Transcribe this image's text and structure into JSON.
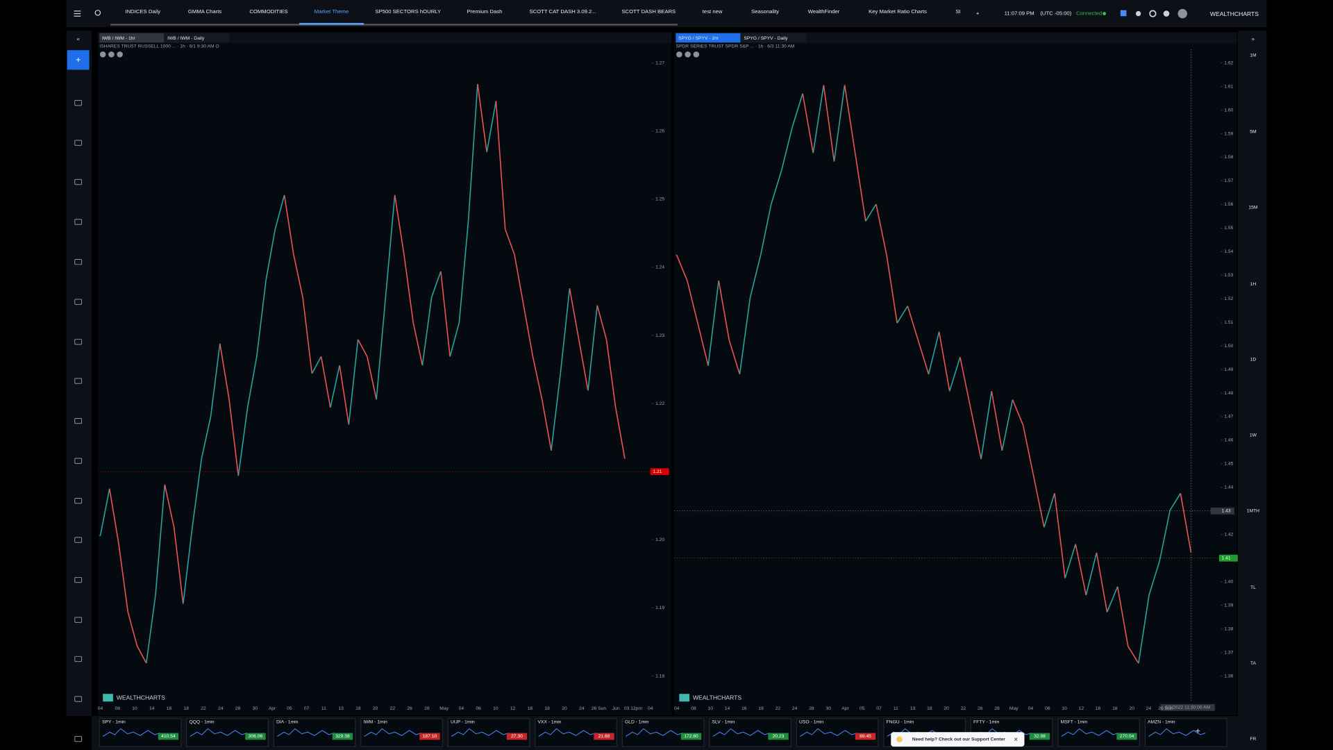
{
  "tabs": [
    "INDICES Daily",
    "GMMA Charts",
    "COMMODITIES",
    "Market Theme",
    "SP500 SECTORS hOURLY",
    "Premium Dash",
    "SCOTT CAT DASH 3.09.2...",
    "SCOTT DASH BEARS",
    "test new",
    "Seasonality",
    "WealthFinder",
    "Key Market Ratio Charts",
    "SI"
  ],
  "active_tab": 3,
  "status": {
    "time": "11:07:09 PM",
    "timezone": "(UTC -05:00)",
    "connection": "Connected",
    "brand": "WEALTHCHARTS"
  },
  "timeframes": [
    "1M",
    "5M",
    "15M",
    "1H",
    "1D",
    "1W",
    "1MTH",
    "TL",
    "TA",
    "FR"
  ],
  "chart_data": [
    {
      "type": "line",
      "tabs": [
        "IWB / IWM - 1hr",
        "IWB / IWM - Daily"
      ],
      "legend": "ISHARES TRUST RUSSELL 1000 ... · 1h · 6/1 9:30 AM O",
      "watermark": "WEALTHCHARTS",
      "up_color": "#26a69a",
      "down_color": "#ef5350",
      "values": [
        1.2006,
        1.2075,
        1.1994,
        1.1894,
        1.1844,
        1.1819,
        1.1919,
        1.2081,
        1.2019,
        1.1906,
        1.2019,
        1.2119,
        1.2181,
        1.2288,
        1.2206,
        1.2094,
        1.2194,
        1.2269,
        1.2381,
        1.2456,
        1.2506,
        1.2419,
        1.2356,
        1.2244,
        1.2269,
        1.2194,
        1.2256,
        1.2169,
        1.2294,
        1.2269,
        1.2206,
        1.2356,
        1.2506,
        1.2419,
        1.2319,
        1.2256,
        1.2356,
        1.2394,
        1.2269,
        1.2319,
        1.2469,
        1.2669,
        1.2569,
        1.2644,
        1.2456,
        1.2419,
        1.2344,
        1.2269,
        1.2206,
        1.2131,
        1.2244,
        1.2369,
        1.2294,
        1.2219,
        1.2344,
        1.2294,
        1.2194,
        1.2119
      ],
      "ylim": [
        1.18,
        1.27
      ],
      "yticks": [
        1.18,
        1.19,
        {
          "value": 1.2,
          "label": "1.20"
        },
        1.21,
        1.22,
        1.23,
        1.24,
        1.25,
        1.26,
        1.27
      ],
      "last_label": "1.21",
      "last_value": 1.21,
      "last_color": "#d50000",
      "x_labels": [
        "04",
        "08",
        "10",
        "14",
        "16",
        "18",
        "22",
        "24",
        "28",
        "30",
        "Apr",
        "05",
        "07",
        "11",
        "13",
        "18",
        "20",
        "22",
        "26",
        "28",
        "May",
        "04",
        "06",
        "10",
        "12",
        "16",
        "18",
        "20",
        "24",
        "26 Sun",
        "Jun",
        "03 12pm",
        "04"
      ]
    },
    {
      "type": "line",
      "tabs": [
        "SPYG / SPYV - 1hr",
        "SPYG / SPYV - Daily"
      ],
      "legend": "SPDR SERIES TRUST SPDR S&P ... · 1h · 6/3 11:30 AM",
      "watermark": "WEALTHCHARTS",
      "up_color": "#26a69a",
      "down_color": "#ef5350",
      "values": [
        1.5385,
        1.5277,
        1.5097,
        1.4916,
        1.5277,
        1.5024,
        1.488,
        1.5205,
        1.5385,
        1.5601,
        1.5746,
        1.5926,
        1.607,
        1.5818,
        1.6106,
        1.5782,
        1.6106,
        1.5818,
        1.5529,
        1.5601,
        1.5385,
        1.5097,
        1.5169,
        1.5024,
        1.488,
        1.506,
        1.4808,
        1.4952,
        1.4736,
        1.452,
        1.4808,
        1.4556,
        1.4772,
        1.4664,
        1.4448,
        1.4231,
        1.4375,
        1.4015,
        1.4159,
        1.3943,
        1.4123,
        1.3871,
        1.3979,
        1.3726,
        1.3654,
        1.3943,
        1.4087,
        1.4303,
        1.4375,
        1.4123
      ],
      "ylim": [
        1.36,
        1.62
      ],
      "yticks": [
        1.36,
        1.37,
        1.38,
        1.39,
        {
          "value": 1.4,
          "label": "1.40"
        },
        1.41,
        1.42,
        1.43,
        1.44,
        1.45,
        1.46,
        1.47,
        1.48,
        1.49,
        {
          "value": 1.5,
          "label": "1.50"
        },
        1.51,
        1.52,
        1.53,
        1.54,
        1.55,
        1.56,
        1.57,
        1.58,
        1.59,
        {
          "value": 1.6,
          "label": "1.60"
        },
        1.61,
        1.62
      ],
      "last_label": "1.41",
      "last_value": 1.41,
      "last_color": "#1e9e2e",
      "crosshair_label": "1.43",
      "crosshair_value": 1.43,
      "crosshair_time": "6/3/2022 11:30:00 AM",
      "x_labels": [
        "04",
        "08",
        "10",
        "14",
        "16",
        "18",
        "22",
        "24",
        "28",
        "30",
        "Apr",
        "05",
        "07",
        "11",
        "13",
        "18",
        "20",
        "22",
        "26",
        "28",
        "May",
        "04",
        "06",
        "10",
        "12",
        "16",
        "18",
        "20",
        "24",
        "26 Sun"
      ]
    }
  ],
  "tickers": [
    {
      "name": "SPY - 1min",
      "price": "410.54",
      "color": "#1e8e3e"
    },
    {
      "name": "QQQ - 1min",
      "price": "306.06",
      "color": "#1e8e3e"
    },
    {
      "name": "DIA - 1min",
      "price": "329.38",
      "color": "#1e8e3e"
    },
    {
      "name": "IWM - 1min",
      "price": "187.10",
      "color": "#c62828"
    },
    {
      "name": "UUP - 1min",
      "price": "27.30",
      "color": "#c62828"
    },
    {
      "name": "VXX - 1min",
      "price": "21.88",
      "color": "#c62828"
    },
    {
      "name": "GLD - 1min",
      "price": "172.60",
      "color": "#1e8e3e"
    },
    {
      "name": "SLV - 1min",
      "price": "20.23",
      "color": "#1e8e3e"
    },
    {
      "name": "USO - 1min",
      "price": "89.45",
      "color": "#c62828"
    },
    {
      "name": "FNGU - 1min",
      "price": "",
      "color": "#1e8e3e"
    },
    {
      "name": "FFTY - 1min",
      "price": "32.98",
      "color": "#1e8e3e"
    },
    {
      "name": "MSFT - 1min",
      "price": "270.04",
      "color": "#1e8e3e"
    },
    {
      "name": "AMZN - 1min",
      "price": "",
      "color": "#1e8e3e"
    }
  ],
  "support": "Need help? Check out our Support Center"
}
